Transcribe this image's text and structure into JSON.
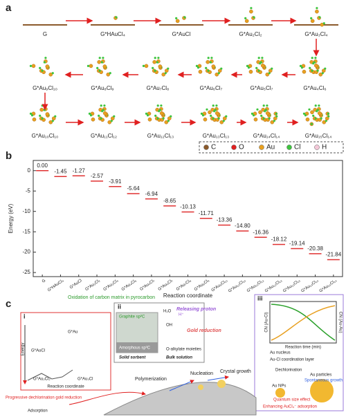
{
  "panel_a": {
    "letter": "a",
    "row1": [
      "G",
      "G*HAuCl₄",
      "G*AuCl",
      "G*Au₂Cl₂",
      "G*Au₃Cl₄"
    ],
    "row2": [
      "G*Au₉Cl₁₀",
      "G*Au₈Cl₉",
      "G*Au₇Cl₈",
      "G*Au₆Cl₇",
      "G*Au₅Cl₇",
      "G*Au₄Cl₆"
    ],
    "row3": [
      "G*Au₁₀Cl₁₀",
      "G*Au₁₁Cl₁₂",
      "G*Au₁₂Cl₁₃",
      "G*Au₁₃Cl₁₃",
      "G*Au₁₄Cl₁₄",
      "G*Au₁₅Cl₁₄"
    ],
    "legend": [
      {
        "name": "C",
        "color": "#8b5a2b"
      },
      {
        "name": "O",
        "color": "#e02020"
      },
      {
        "name": "Au",
        "color": "#e8a020"
      },
      {
        "name": "Cl",
        "color": "#3ec43e"
      },
      {
        "name": "H",
        "color": "#f4c8d8"
      }
    ]
  },
  "chart_data": {
    "type": "levels",
    "letter": "b",
    "xlabel": "Reaction coordinate",
    "ylabel": "Energy (eV)",
    "categories": [
      "G",
      "G*HAuCl₄",
      "G*AuCl",
      "G*Au₂Cl₂",
      "G*Au₃Cl₄",
      "G*Au₄Cl₆",
      "G*Au₅Cl₇",
      "G*Au₆Cl₇",
      "G*Au₇Cl₈",
      "G*Au₈Cl₉",
      "G*Au₉Cl₁₀",
      "G*Au₁₀Cl₁₀",
      "G*Au₁₁Cl₁₂",
      "G*Au₁₂Cl₁₃",
      "G*Au₁₃Cl₁₃",
      "G*Au₁₄Cl₁₄",
      "G*Au₁₅Cl₁₄"
    ],
    "values": [
      0,
      -1.45,
      -1.27,
      -2.57,
      -3.91,
      -5.64,
      -6.94,
      -8.65,
      -10.13,
      -11.71,
      -13.36,
      -14.8,
      -16.36,
      -18.12,
      -19.14,
      -20.38,
      -21.84
    ],
    "value_labels": [
      "0.00",
      "-1.45",
      "-1.27",
      "-2.57",
      "-3.91",
      "-5.64",
      "-6.94",
      "-8.65",
      "-10.13",
      "-11.71",
      "-13.36",
      "-14.80",
      "-16.36",
      "-18.12",
      "-19.14",
      "-20.38",
      "-21.84"
    ],
    "color": "#e03030",
    "ylim": [
      -26,
      2.5
    ],
    "yticks": [
      -25,
      -20,
      -15,
      -10,
      -5,
      0
    ]
  },
  "panel_c": {
    "letter": "c",
    "sub_i": "i",
    "sub_ii": "ii",
    "sub_iii": "iii",
    "energy": "Energy",
    "reaction_coordinate": "Reaction coordinate",
    "i_states": [
      "G*Au",
      "G*AuCl",
      "G*Au₂Cl₂",
      "G*Au₃Cl"
    ],
    "oxidation": "Oxidation of carbon matrix in pyrocarbon",
    "graphite": "Graphite sp²C",
    "amorphous": "Amorphous sp³C",
    "water": "H₂O",
    "proton_ion": "H⁺",
    "hydroxyl": "OH",
    "releasing": "Releasing proton",
    "gold_reduction": "Gold reduction",
    "alkylate": "O-alkylate moieties",
    "solid": "Solid sorbent",
    "bulk": "Bulk solution",
    "dechlorination_text": "Progressive dechlorination gold reduction",
    "adsorption": "Adsorption",
    "polymerization": "Polymerization",
    "nucleation": "Nucleation",
    "crystal": "Crystal growth",
    "iii_xlabel": "Reaction time (min)",
    "cn_cl": "CN (Au-Cl)",
    "cn_au": "CN (Au-Au)",
    "au_nucleus": "Au nucleus",
    "coord_layer": "Au-Cl coordination layer",
    "dechlorination": "Dechlorination",
    "au_nps": "Au NPs",
    "au_particles": "Au particles",
    "spontaneous": "Spontaneous growth",
    "quantum": "Quantum size effect",
    "enhancing": "Enhancing AuCl₄⁻ adsorption"
  }
}
